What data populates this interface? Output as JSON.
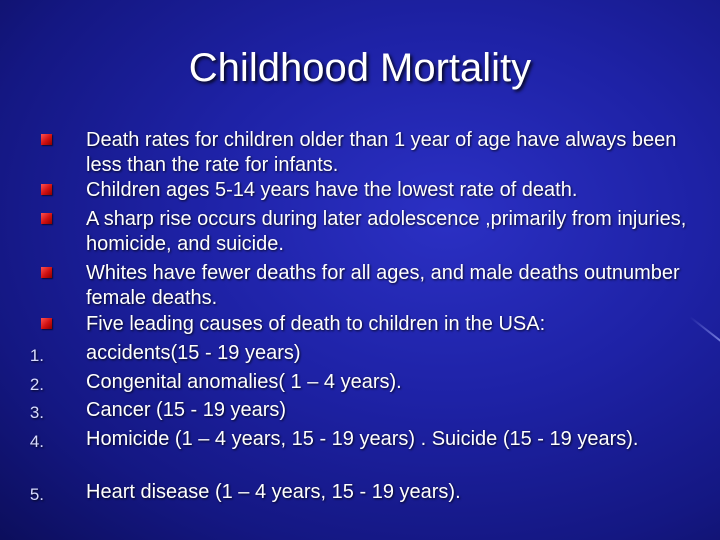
{
  "slide": {
    "title": "Childhood Mortality",
    "bullets": [
      {
        "text": "Death rates for children older than 1 year of age have always been less than the rate for infants."
      },
      {
        "text": "Children ages 5-14 years have the lowest rate of death."
      },
      {
        "text": "A sharp rise occurs during later adolescence ,primarily from injuries, homicide, and suicide."
      },
      {
        "text": "Whites have fewer deaths for all ages, and male deaths outnumber female deaths."
      },
      {
        "text": "Five leading causes of death to children in the USA:"
      }
    ],
    "numbered": [
      {
        "num": "1.",
        "text": "accidents(15 - 19 years)"
      },
      {
        "num": "2.",
        "text": "Congenital anomalies( 1 – 4 years)."
      },
      {
        "num": "3.",
        "text": "Cancer (15 - 19 years)"
      },
      {
        "num": "4.",
        "text": "Homicide (1 – 4 years, 15 - 19 years) . Suicide (15 - 19 years)."
      },
      {
        "num": "5.",
        "text": "Heart disease (1 – 4 years, 15 - 19 years)."
      }
    ]
  }
}
